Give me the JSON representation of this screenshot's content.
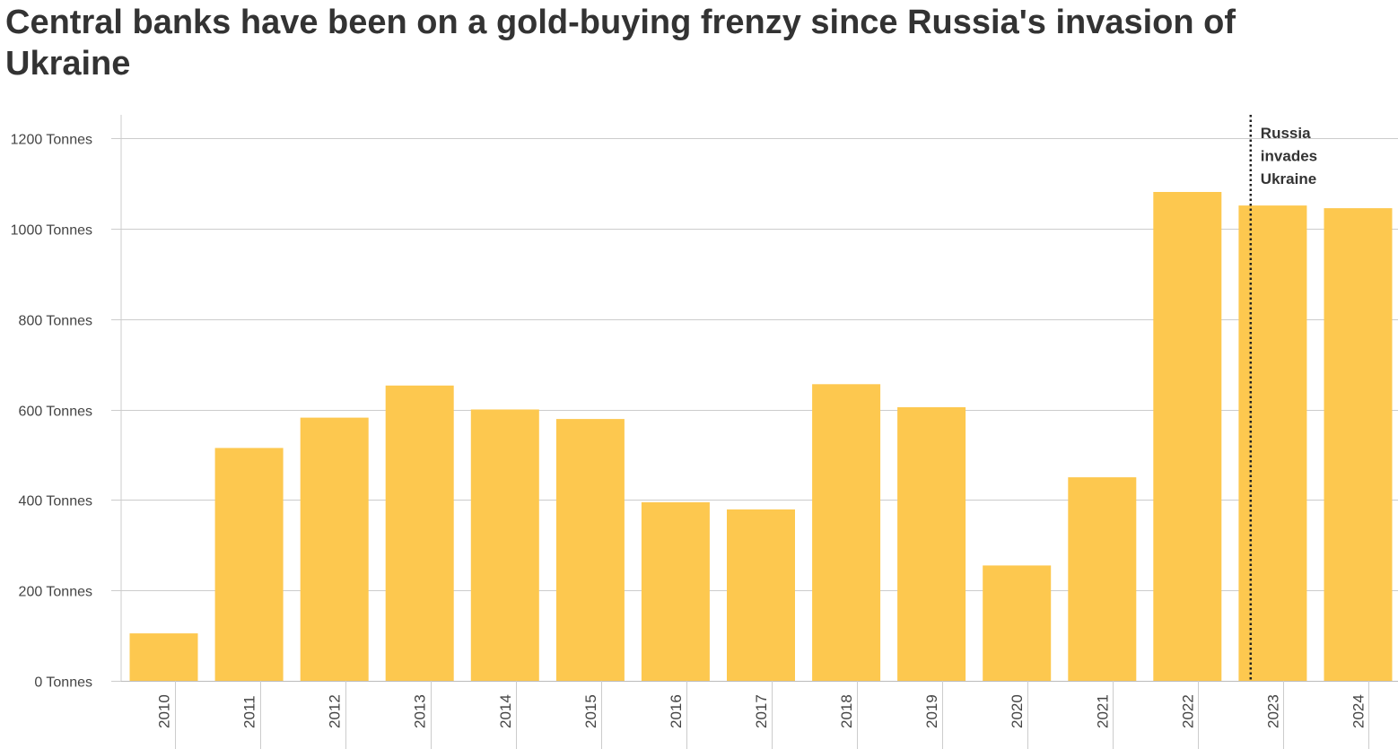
{
  "title": "Central banks have been on a gold-buying frenzy since Russia's invasion of Ukraine",
  "chart_data": {
    "type": "bar",
    "title": "Central banks have been on a gold-buying frenzy since Russia's invasion of Ukraine",
    "xlabel": "",
    "ylabel": "",
    "categories": [
      "2010",
      "2011",
      "2012",
      "2013",
      "2014",
      "2015",
      "2016",
      "2017",
      "2018",
      "2019",
      "2020",
      "2021",
      "2022",
      "2023",
      "2024"
    ],
    "values": [
      105,
      515,
      582,
      653,
      600,
      579,
      395,
      379,
      656,
      605,
      255,
      450,
      1081,
      1051,
      1045
    ],
    "y_ticks": [
      0,
      200,
      400,
      600,
      800,
      1000,
      1200
    ],
    "y_tick_suffix": " Tonnes",
    "ylim": [
      0,
      1250
    ],
    "grid": true,
    "bar_color": "#fdc84f",
    "annotation": {
      "at_category": "2022",
      "lines": [
        "Russia",
        "invades",
        "Ukraine"
      ],
      "style": "dotted-vertical-line"
    }
  }
}
